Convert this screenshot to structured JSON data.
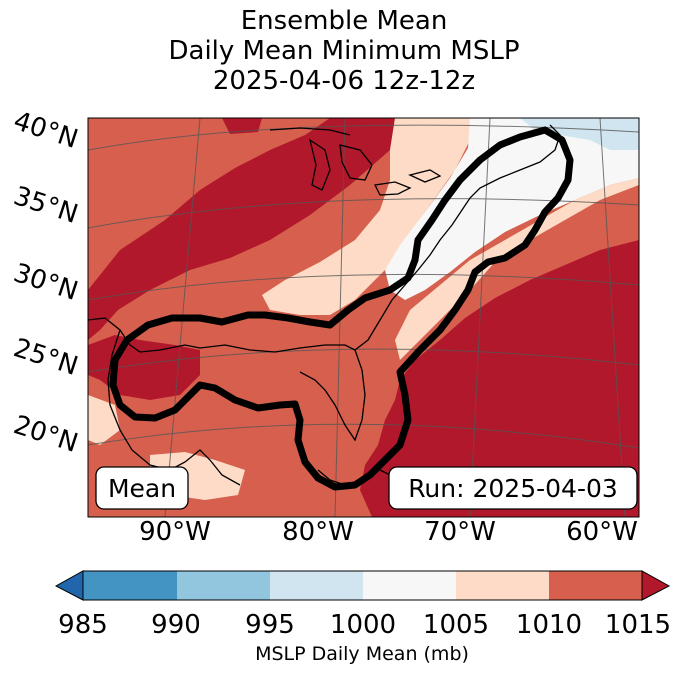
{
  "title": {
    "line1": "Ensemble Mean",
    "line2": "Daily Mean Minimum MSLP",
    "line3": "2025-04-06 12z-12z"
  },
  "map": {
    "lat_labels": [
      "40°N",
      "35°N",
      "30°N",
      "25°N",
      "20°N"
    ],
    "lon_labels": [
      "90°W",
      "80°W",
      "70°W",
      "60°W"
    ],
    "mean_box": "Mean",
    "run_box": "Run: 2025-04-03",
    "contour_color": "#000000",
    "coastline_color": "#000000"
  },
  "colorbar": {
    "ticks": [
      "985",
      "990",
      "995",
      "1000",
      "1005",
      "1010",
      "1015"
    ],
    "label": "MSLP Daily Mean (mb)",
    "colors": {
      "below": "#2166ac",
      "985_990": "#4393c3",
      "990_995": "#92c5de",
      "995_1000": "#d1e5f0",
      "1000_1005": "#f7f7f7",
      "1005_1010": "#fddbc7",
      "1010_1015": "#d6604d",
      "above": "#b2182b"
    }
  }
}
